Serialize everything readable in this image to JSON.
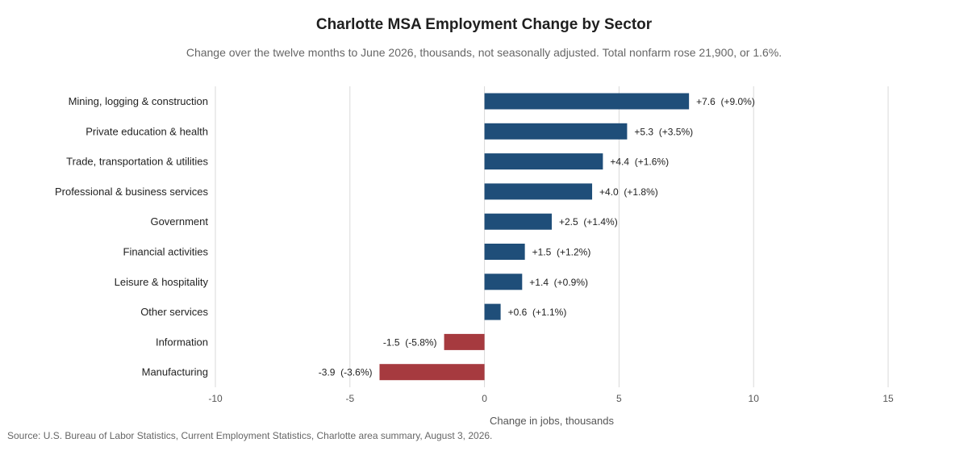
{
  "chart_data": {
    "type": "bar",
    "orientation": "horizontal",
    "title": "Charlotte MSA Employment Change by Sector",
    "subtitle": "Change over the twelve months to June 2026, thousands, not seasonally adjusted. Total nonfarm rose 21,900, or 1.6%.",
    "xlabel": "Change in jobs, thousands",
    "ylabel": "",
    "xlim": [
      -10,
      15
    ],
    "xticks": [
      -10,
      -5,
      0,
      5,
      10,
      15
    ],
    "xtick_labels": [
      "-10",
      "-5",
      "0",
      "5",
      "10",
      "15"
    ],
    "grid": true,
    "categories": [
      "Mining, logging & construction",
      "Private education & health",
      "Trade, transportation & utilities",
      "Professional & business services",
      "Government",
      "Financial activities",
      "Leisure & hospitality",
      "Other services",
      "Information",
      "Manufacturing"
    ],
    "values": [
      7.6,
      5.3,
      4.4,
      4.0,
      2.5,
      1.5,
      1.4,
      0.6,
      -1.5,
      -3.9
    ],
    "data_labels": [
      "+7.6  (+9.0%)",
      "+5.3  (+3.5%)",
      "+4.4  (+1.6%)",
      "+4.0  (+1.8%)",
      "+2.5  (+1.4%)",
      "+1.5  (+1.2%)",
      "+1.4  (+0.9%)",
      "+0.6  (+1.1%)",
      "-1.5  (-5.8%)",
      "-3.9  (-3.6%)"
    ],
    "colors": {
      "positive": "#1f4e79",
      "negative": "#a63a3f",
      "grid": "#d9d9d9"
    }
  },
  "source": "Source: U.S. Bureau of Labor Statistics, Current Employment Statistics, Charlotte area summary, August 3, 2026."
}
